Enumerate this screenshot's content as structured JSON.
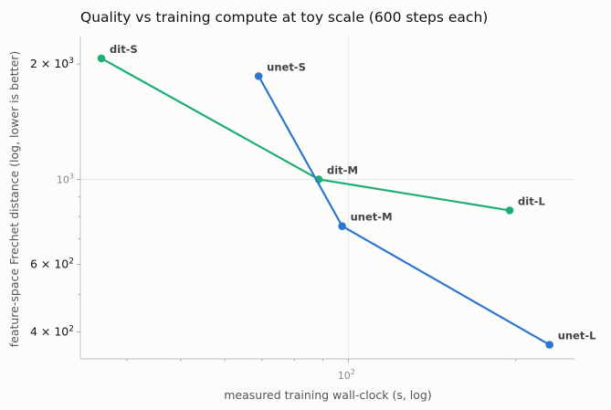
{
  "chart_data": {
    "type": "line",
    "title": "Quality vs training compute at toy scale (600 steps each)",
    "xlabel": "measured training wall-clock (s, log)",
    "ylabel": "feature-space Frechet distance (log, lower is better)",
    "x_scale": "log",
    "y_scale": "log",
    "xlim": [
      33,
      255
    ],
    "ylim": [
      340,
      2360
    ],
    "grid": true,
    "x_ticks": [
      {
        "value": 100,
        "base": "10",
        "exp": "2"
      }
    ],
    "y_ticks": [
      {
        "value": 400,
        "coef": "4",
        "times": "×",
        "base": "10",
        "exp": "2",
        "style": "major"
      },
      {
        "value": 600,
        "coef": "6",
        "times": "×",
        "base": "10",
        "exp": "2",
        "style": "major"
      },
      {
        "value": 1000,
        "coef": "",
        "times": "",
        "base": "10",
        "exp": "3",
        "style": "grey"
      },
      {
        "value": 2000,
        "coef": "2",
        "times": "×",
        "base": "10",
        "exp": "3",
        "style": "major"
      }
    ],
    "series": [
      {
        "family": "dit",
        "color": "#1dae78",
        "points": [
          {
            "label": "dit-S",
            "x": 36.0,
            "y": 2070
          },
          {
            "label": "dit-M",
            "x": 88.5,
            "y": 1000
          },
          {
            "label": "dit-L",
            "x": 195.0,
            "y": 830
          }
        ]
      },
      {
        "family": "unet",
        "color": "#2d76cf",
        "points": [
          {
            "label": "unet-S",
            "x": 69.0,
            "y": 1860
          },
          {
            "label": "unet-M",
            "x": 97.5,
            "y": 755
          },
          {
            "label": "unet-L",
            "x": 230.0,
            "y": 370
          }
        ]
      }
    ]
  }
}
